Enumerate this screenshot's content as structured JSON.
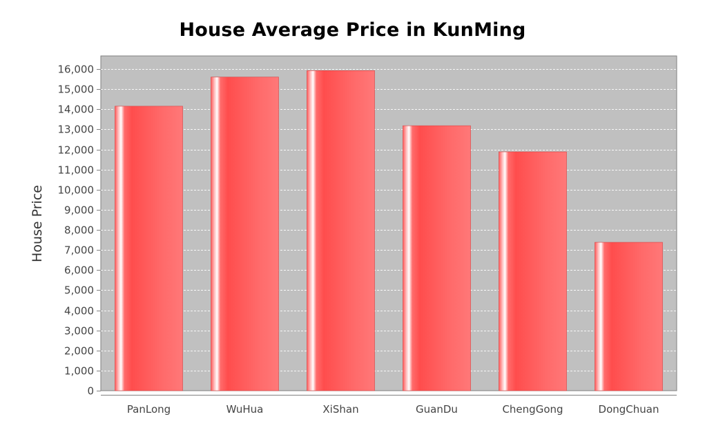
{
  "chart_data": {
    "type": "bar",
    "title": "House Average Price in KunMing",
    "xlabel": "",
    "ylabel": "House Price",
    "categories": [
      "PanLong",
      "WuHua",
      "XiShan",
      "GuanDu",
      "ChengGong",
      "DongChuan"
    ],
    "values": [
      14150,
      15600,
      15920,
      13180,
      11880,
      7380
    ],
    "ylim": [
      0,
      16000
    ],
    "yticks": [
      "0",
      "1,000",
      "2,000",
      "3,000",
      "4,000",
      "5,000",
      "6,000",
      "7,000",
      "8,000",
      "9,000",
      "10,000",
      "11,000",
      "12,000",
      "13,000",
      "14,000",
      "15,000",
      "16,000"
    ],
    "grid": true,
    "legend": "none",
    "colors": {
      "bar": "#ff5555",
      "plot_background": "#c0c0c0",
      "gridline": "#ffffff"
    }
  }
}
